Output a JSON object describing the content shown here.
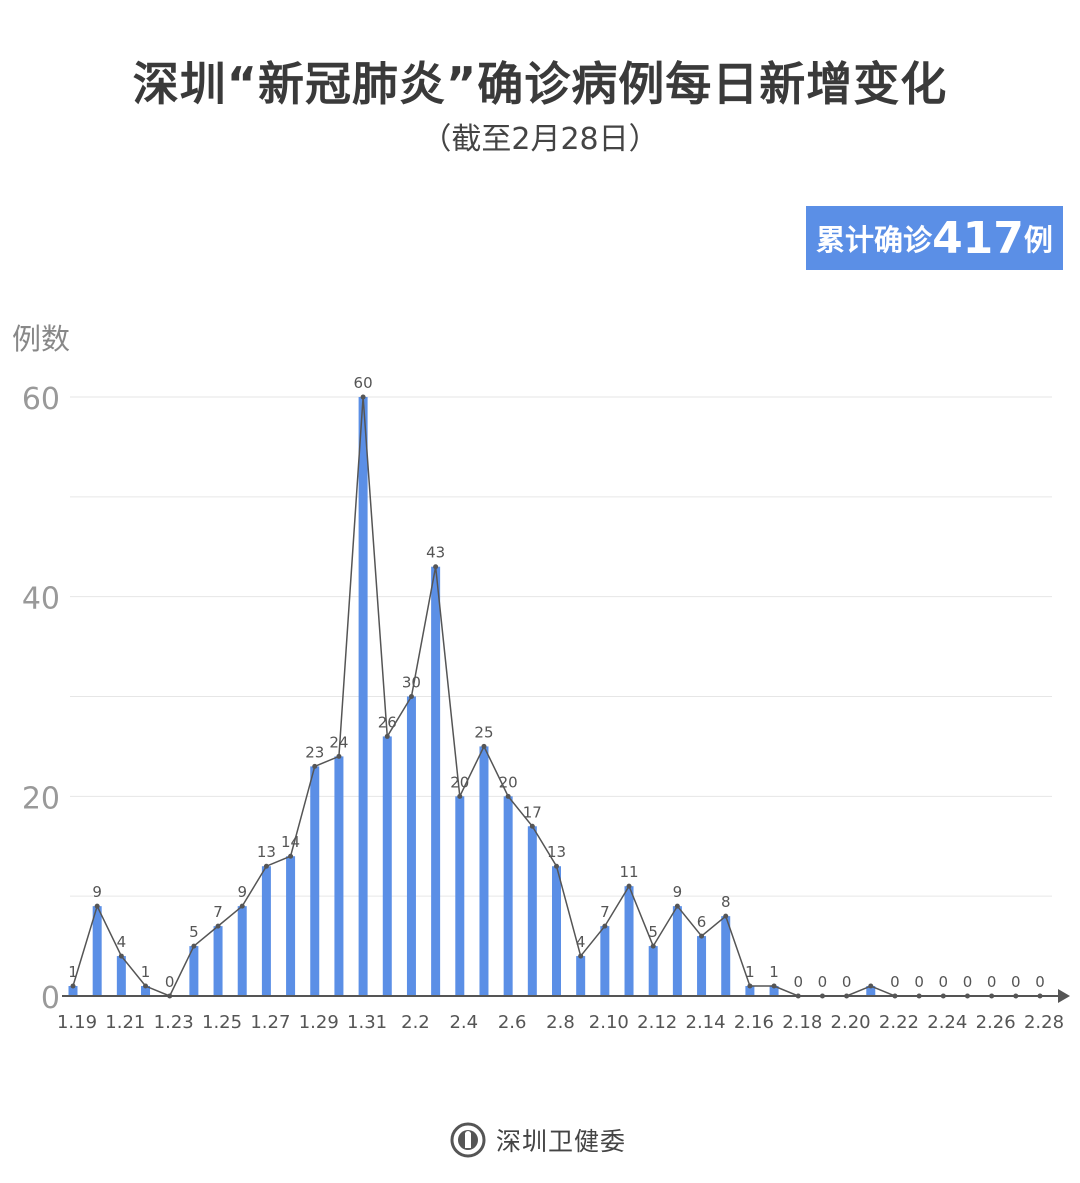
{
  "title": "深圳“新冠肺炎”确诊病例每日新增变化",
  "subtitle": "（截至2月28日）",
  "badge": {
    "label": "累计确诊",
    "value": "417",
    "unit": "例"
  },
  "footer": {
    "org": "深圳卫健委",
    "logo_icon": "health-commission-seal"
  },
  "colors": {
    "bar": "#5b8fe6",
    "line": "#555555",
    "badge": "#5b8fe6"
  },
  "chart_data": {
    "type": "bar+line",
    "title": "深圳“新冠肺炎”确诊病例每日新增变化",
    "ylabel": "例数",
    "ylim": [
      0,
      60
    ],
    "yticks": [
      0,
      20,
      40,
      60
    ],
    "grid": true,
    "categories": [
      "1.19",
      "1.20",
      "1.21",
      "1.22",
      "1.23",
      "1.24",
      "1.25",
      "1.26",
      "1.27",
      "1.28",
      "1.29",
      "1.30",
      "1.31",
      "2.1",
      "2.2",
      "2.3",
      "2.4",
      "2.5",
      "2.6",
      "2.7",
      "2.8",
      "2.9",
      "2.10",
      "2.11",
      "2.12",
      "2.13",
      "2.14",
      "2.15",
      "2.16",
      "2.17",
      "2.18",
      "2.19",
      "2.20",
      "2.21",
      "2.22",
      "2.23",
      "2.24",
      "2.25",
      "2.26",
      "2.27",
      "2.28"
    ],
    "xtick_labels": [
      "1.19",
      "1.21",
      "1.23",
      "1.25",
      "1.27",
      "1.29",
      "1.31",
      "2.2",
      "2.4",
      "2.6",
      "2.8",
      "2.10",
      "2.12",
      "2.14",
      "2.16",
      "2.18",
      "2.20",
      "2.22",
      "2.24",
      "2.26",
      "2.28"
    ],
    "values": [
      1,
      9,
      4,
      1,
      0,
      5,
      7,
      9,
      13,
      14,
      23,
      24,
      60,
      26,
      30,
      43,
      20,
      25,
      20,
      17,
      13,
      4,
      7,
      11,
      5,
      9,
      6,
      8,
      1,
      1,
      0,
      0,
      0,
      1,
      0,
      0,
      0,
      0,
      0,
      0,
      0
    ],
    "data_labels": [
      "1",
      "9",
      "4",
      "1",
      "0",
      "5",
      "7",
      "9",
      "13",
      "14",
      "23",
      "24",
      "60",
      "26",
      "30",
      "43",
      "20",
      "25",
      "20",
      "17",
      "13",
      "4",
      "7",
      "11",
      "5",
      "9",
      "6",
      "8",
      "1",
      "1",
      "0",
      "0",
      "0",
      null,
      "0",
      "0",
      "0",
      "0",
      "0",
      "0",
      "0"
    ]
  }
}
